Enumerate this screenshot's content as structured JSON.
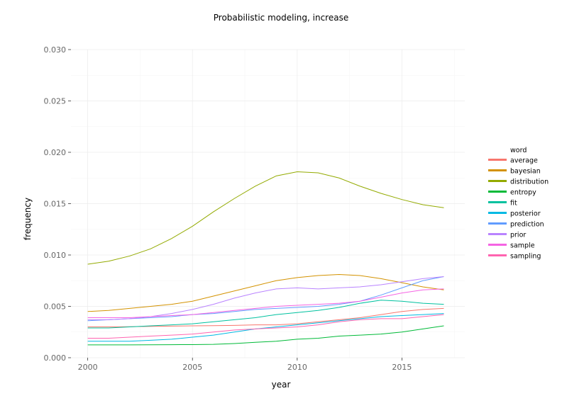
{
  "chart_data": {
    "type": "line",
    "title": "Probabilistic modeling, increase",
    "xlabel": "year",
    "ylabel": "frequency",
    "xlim": [
      1999.2,
      2018.0
    ],
    "ylim": [
      0.0,
      0.03
    ],
    "x_ticks": [
      2000,
      2005,
      2010,
      2015
    ],
    "x_tick_labels": [
      "2000",
      "2005",
      "2010",
      "2015"
    ],
    "y_ticks": [
      0.0,
      0.005,
      0.01,
      0.015,
      0.02,
      0.025,
      0.03
    ],
    "y_tick_labels": [
      "0.000",
      "0.005",
      "0.010",
      "0.015",
      "0.020",
      "0.025",
      "0.030"
    ],
    "grid": true,
    "legend": {
      "title": "word",
      "placement": "right"
    },
    "x": [
      2000,
      2001,
      2002,
      2003,
      2004,
      2005,
      2006,
      2007,
      2008,
      2009,
      2010,
      2011,
      2012,
      2013,
      2014,
      2015,
      2016,
      2017
    ],
    "series": [
      {
        "name": "average",
        "color": "#F8766D",
        "values": [
          0.003,
          0.003,
          0.00302,
          0.00305,
          0.00308,
          0.0031,
          0.00312,
          0.00315,
          0.0032,
          0.0032,
          0.0033,
          0.0035,
          0.0037,
          0.0039,
          0.0042,
          0.0045,
          0.0047,
          0.0048
        ]
      },
      {
        "name": "bayesian",
        "color": "#D39200",
        "values": [
          0.0045,
          0.0046,
          0.0048,
          0.005,
          0.0052,
          0.0055,
          0.006,
          0.0065,
          0.007,
          0.0075,
          0.0078,
          0.008,
          0.0081,
          0.008,
          0.0077,
          0.0073,
          0.0069,
          0.0066
        ]
      },
      {
        "name": "distribution",
        "color": "#93AA00",
        "values": [
          0.0091,
          0.0094,
          0.0099,
          0.0106,
          0.0116,
          0.0128,
          0.0142,
          0.0155,
          0.0167,
          0.0177,
          0.0181,
          0.018,
          0.0175,
          0.0167,
          0.016,
          0.0154,
          0.0149,
          0.0146
        ]
      },
      {
        "name": "entropy",
        "color": "#00BA38",
        "values": [
          0.00125,
          0.00125,
          0.00125,
          0.00126,
          0.00127,
          0.00128,
          0.0013,
          0.00138,
          0.0015,
          0.0016,
          0.0018,
          0.0019,
          0.0021,
          0.0022,
          0.0023,
          0.0025,
          0.0028,
          0.0031
        ]
      },
      {
        "name": "fit",
        "color": "#00C19F",
        "values": [
          0.0029,
          0.0029,
          0.003,
          0.0031,
          0.0032,
          0.0033,
          0.0035,
          0.0037,
          0.0039,
          0.0042,
          0.0044,
          0.0046,
          0.0049,
          0.0053,
          0.0056,
          0.0055,
          0.0053,
          0.0052
        ]
      },
      {
        "name": "posterior",
        "color": "#00B9E3",
        "values": [
          0.0016,
          0.0016,
          0.0016,
          0.0017,
          0.0018,
          0.002,
          0.0022,
          0.0025,
          0.0028,
          0.003,
          0.0032,
          0.0034,
          0.0036,
          0.0038,
          0.004,
          0.0041,
          0.0042,
          0.0043
        ]
      },
      {
        "name": "prediction",
        "color": "#619CFF",
        "values": [
          0.0036,
          0.0037,
          0.0038,
          0.0039,
          0.004,
          0.0042,
          0.0043,
          0.0045,
          0.0047,
          0.0048,
          0.0049,
          0.005,
          0.0052,
          0.0055,
          0.0061,
          0.0068,
          0.0075,
          0.0079
        ]
      },
      {
        "name": "prior",
        "color": "#B983FF",
        "values": [
          0.0037,
          0.0037,
          0.0038,
          0.004,
          0.0043,
          0.0047,
          0.0052,
          0.0058,
          0.0063,
          0.0067,
          0.0068,
          0.0067,
          0.0068,
          0.0069,
          0.0071,
          0.0074,
          0.0077,
          0.0079
        ]
      },
      {
        "name": "sample",
        "color": "#F564E3",
        "values": [
          0.0039,
          0.0039,
          0.0039,
          0.004,
          0.0041,
          0.0042,
          0.0044,
          0.0046,
          0.0048,
          0.005,
          0.0051,
          0.0052,
          0.0053,
          0.0055,
          0.0059,
          0.0063,
          0.0066,
          0.0067
        ]
      },
      {
        "name": "sampling",
        "color": "#FF64B0",
        "values": [
          0.0019,
          0.0019,
          0.002,
          0.0021,
          0.0022,
          0.0023,
          0.0025,
          0.0027,
          0.0028,
          0.0029,
          0.003,
          0.0032,
          0.0035,
          0.0037,
          0.0038,
          0.0038,
          0.004,
          0.0042
        ]
      }
    ]
  }
}
